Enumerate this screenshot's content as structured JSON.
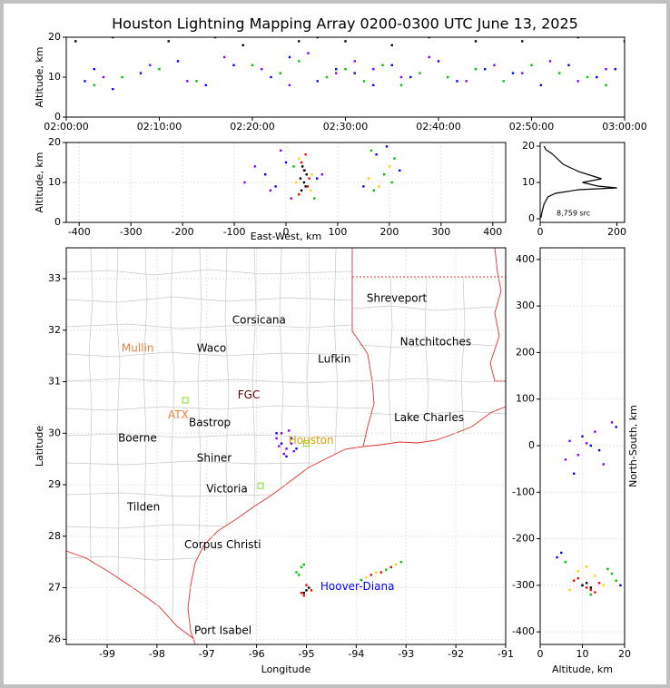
{
  "chart_data": [
    {
      "type": "scatter",
      "title": "Houston Lightning Mapping Array 0200-0300 UTC June 13, 2025",
      "ylabel": "Altitude, km",
      "xlim": [
        0,
        60
      ],
      "xticks": [
        {
          "value": 0,
          "label": "02:00:00"
        },
        {
          "value": 10,
          "label": "02:10:00"
        },
        {
          "value": 20,
          "label": "02:20:00"
        },
        {
          "value": 30,
          "label": "02:30:00"
        },
        {
          "value": 40,
          "label": "02:40:00"
        },
        {
          "value": 50,
          "label": "02:50:00"
        },
        {
          "value": 60,
          "label": "03:00:00"
        }
      ],
      "ylim": [
        0,
        20
      ],
      "yticks": [
        0,
        10,
        20
      ],
      "grid": false,
      "series": [
        {
          "color": "#0000ff",
          "x": [
            2,
            3,
            5,
            8,
            12,
            15,
            18,
            22,
            24,
            27,
            29,
            31,
            33,
            35,
            37,
            40,
            42,
            45,
            48,
            51,
            54,
            57,
            59
          ],
          "y": [
            9,
            12,
            7,
            11,
            14,
            8,
            13,
            10,
            15,
            9,
            12,
            11,
            8,
            13,
            10,
            14,
            9,
            12,
            11,
            8,
            13,
            10,
            12
          ]
        },
        {
          "color": "#00c000",
          "x": [
            3,
            6,
            10,
            14,
            20,
            23,
            25,
            28,
            30,
            32,
            34,
            36,
            38,
            41,
            44,
            47,
            50,
            53,
            56,
            58
          ],
          "y": [
            8,
            10,
            12,
            9,
            13,
            11,
            14,
            10,
            12,
            9,
            13,
            8,
            11,
            10,
            12,
            9,
            13,
            11,
            10,
            8
          ]
        },
        {
          "color": "#8000ff",
          "x": [
            4,
            9,
            13,
            17,
            21,
            24,
            26,
            29,
            31,
            33,
            36,
            39,
            43,
            46,
            49,
            52,
            55,
            58
          ],
          "y": [
            10,
            13,
            9,
            15,
            12,
            8,
            16,
            11,
            14,
            12,
            10,
            15,
            9,
            13,
            11,
            14,
            9,
            12
          ]
        },
        {
          "color": "#000000",
          "x": [
            1,
            5,
            11,
            16,
            19,
            25,
            27,
            30,
            35,
            39,
            44,
            49,
            55,
            60
          ],
          "y": [
            19,
            20,
            19,
            20,
            18,
            19,
            20,
            19,
            18,
            20,
            19,
            19,
            20,
            19
          ]
        }
      ]
    },
    {
      "type": "scatter",
      "xlabel": "East-West, km",
      "ylabel": "Altitude, km",
      "xlim": [
        -425,
        425
      ],
      "xticks": [
        -400,
        -300,
        -200,
        -100,
        0,
        100,
        200,
        300,
        400
      ],
      "ylim": [
        0,
        20
      ],
      "yticks": [
        0,
        10,
        20
      ],
      "grid": true,
      "series": [
        {
          "color": "#8000ff",
          "x": [
            -80,
            -60,
            -30,
            -10,
            10,
            70
          ],
          "y": [
            10,
            14,
            8,
            18,
            6,
            12
          ]
        },
        {
          "color": "#0000ff",
          "x": [
            -40,
            -20,
            0,
            60,
            150,
            220,
            175,
            195
          ],
          "y": [
            12,
            9,
            15,
            11,
            9,
            13,
            17,
            19
          ]
        },
        {
          "color": "#00c000",
          "x": [
            15,
            55,
            170,
            190,
            210,
            165,
            205
          ],
          "y": [
            14,
            6,
            8,
            12,
            16,
            18,
            10
          ]
        },
        {
          "color": "#ffd000",
          "x": [
            20,
            50,
            25,
            48,
            160,
            200,
            180
          ],
          "y": [
            10,
            12,
            16,
            8,
            11,
            14,
            9
          ]
        },
        {
          "color": "#ff0000",
          "x": [
            25,
            45,
            30,
            42,
            35,
            38
          ],
          "y": [
            7,
            11,
            15,
            9,
            13,
            17
          ]
        },
        {
          "color": "#000000",
          "x": [
            30,
            35,
            40,
            32,
            38,
            28,
            36
          ],
          "y": [
            8,
            10,
            12,
            14,
            9,
            11,
            13
          ]
        }
      ]
    },
    {
      "type": "line",
      "annotation": "8,759 src",
      "xlim": [
        0,
        220
      ],
      "xticks": [
        0,
        200
      ],
      "ylim": [
        -1,
        21
      ],
      "yticks": [
        0,
        10,
        20
      ],
      "grid": false,
      "series": [
        {
          "color": "#000000",
          "x": [
            2,
            5,
            10,
            20,
            40,
            100,
            200,
            150,
            110,
            160,
            130,
            100,
            80,
            60,
            50,
            40,
            30,
            15,
            10
          ],
          "y": [
            0.3,
            2,
            4,
            6,
            7,
            8,
            8.5,
            9,
            10,
            11,
            12,
            13,
            14,
            15,
            16,
            17,
            18,
            19,
            20
          ]
        }
      ]
    },
    {
      "type": "scatter",
      "xlabel": "Longitude",
      "ylabel": "Latitude",
      "xlim": [
        -99.82,
        -91
      ],
      "xticks": [
        -99,
        -98,
        -97,
        -96,
        -95,
        -94,
        -93,
        -92,
        -91
      ],
      "ylim": [
        25.9,
        33.6
      ],
      "yticks": [
        26,
        27,
        28,
        29,
        30,
        31,
        32,
        33
      ],
      "grid": true,
      "labels": [
        {
          "text": "Shreveport",
          "x": -93.79,
          "y": 32.61,
          "color": "#000000"
        },
        {
          "text": "Corsicana",
          "x": -96.49,
          "y": 32.19,
          "color": "#000000"
        },
        {
          "text": "Natchitoches",
          "x": -93.12,
          "y": 31.77,
          "color": "#000000"
        },
        {
          "text": "Mullin",
          "x": -98.71,
          "y": 31.64,
          "color": "#f08040"
        },
        {
          "text": "Waco",
          "x": -97.2,
          "y": 31.64,
          "color": "#000000"
        },
        {
          "text": "Lufkin",
          "x": -94.77,
          "y": 31.43,
          "color": "#000000"
        },
        {
          "text": "FGC",
          "x": -96.38,
          "y": 30.74,
          "color": "#600000"
        },
        {
          "text": "ATX",
          "x": -97.78,
          "y": 30.35,
          "color": "#f08040"
        },
        {
          "text": "Bastrop",
          "x": -97.36,
          "y": 30.2,
          "color": "#000000"
        },
        {
          "text": "Lake Charles",
          "x": -93.24,
          "y": 30.3,
          "color": "#000000"
        },
        {
          "text": "Boerne",
          "x": -98.78,
          "y": 29.9,
          "color": "#000000"
        },
        {
          "text": "Houston",
          "x": -95.36,
          "y": 29.86,
          "color": "#e0a000"
        },
        {
          "text": "Shiner",
          "x": -97.2,
          "y": 29.51,
          "color": "#000000"
        },
        {
          "text": "Victoria",
          "x": -97.01,
          "y": 28.91,
          "color": "#000000"
        },
        {
          "text": "Tilden",
          "x": -98.6,
          "y": 28.56,
          "color": "#000000"
        },
        {
          "text": "Corpus Christi",
          "x": -97.45,
          "y": 27.83,
          "color": "#000000"
        },
        {
          "text": "Hoover-Diana",
          "x": -94.72,
          "y": 27.02,
          "color": "#0000ff"
        },
        {
          "text": "Port Isabel",
          "x": -97.25,
          "y": 26.16,
          "color": "#000000"
        }
      ],
      "stations": {
        "color": "#80e020",
        "x": [
          -97.43,
          -95.92,
          -95.0
        ],
        "y": [
          30.64,
          28.98,
          29.8
        ]
      },
      "series": [
        {
          "color": "#8000ff",
          "x": [
            -95.6,
            -95.5,
            -95.4,
            -95.3,
            -95.45,
            -95.35,
            -95.55,
            -95.25
          ],
          "y": [
            29.9,
            30.0,
            29.7,
            29.8,
            29.6,
            30.05,
            29.75,
            29.65
          ]
        },
        {
          "color": "#0000ff",
          "x": [
            -95.5,
            -95.3,
            -95.4,
            -95.2,
            -95.6
          ],
          "y": [
            29.8,
            29.9,
            29.55,
            29.7,
            30.0
          ]
        },
        {
          "color": "#00c000",
          "x": [
            -95.2,
            -95.1,
            -95.15,
            -95.05,
            -93.9,
            -93.1,
            -93.4
          ],
          "y": [
            27.3,
            27.4,
            27.25,
            27.45,
            27.15,
            27.5,
            27.35
          ]
        },
        {
          "color": "#ffd000",
          "x": [
            -93.8,
            -93.6,
            -93.3,
            -93.2
          ],
          "y": [
            27.2,
            27.3,
            27.4,
            27.45
          ]
        },
        {
          "color": "#ff0000",
          "x": [
            -95.1,
            -95.0,
            -94.9,
            -95.05,
            -93.7,
            -93.5,
            -93.3
          ],
          "y": [
            26.9,
            27.05,
            26.95,
            26.85,
            27.25,
            27.3,
            27.4
          ]
        },
        {
          "color": "#000000",
          "x": [
            -95.0,
            -94.95,
            -95.05
          ],
          "y": [
            26.95,
            27.0,
            26.9
          ]
        }
      ]
    },
    {
      "type": "scatter",
      "xlabel": "Altitude, km",
      "ylabel": "North-South, km",
      "xlim": [
        0,
        20
      ],
      "xticks": [
        0,
        10,
        20
      ],
      "ylim": [
        -427,
        425
      ],
      "yticks": [
        -400,
        -300,
        -200,
        -100,
        0,
        100,
        200,
        300,
        400
      ],
      "grid": true,
      "series": [
        {
          "color": "#8000ff",
          "x": [
            7,
            9,
            13,
            15,
            11,
            17,
            6
          ],
          "y": [
            10,
            -20,
            30,
            -40,
            5,
            50,
            -30
          ]
        },
        {
          "color": "#0000ff",
          "x": [
            5,
            19,
            4,
            10,
            14,
            18,
            8,
            12
          ],
          "y": [
            -230,
            -300,
            -240,
            20,
            -10,
            40,
            -60,
            0
          ]
        },
        {
          "color": "#00c000",
          "x": [
            6,
            16,
            18,
            12,
            17
          ],
          "y": [
            -250,
            -265,
            -290,
            -320,
            -275
          ]
        },
        {
          "color": "#ffd000",
          "x": [
            9,
            13,
            15,
            11,
            7
          ],
          "y": [
            -270,
            -280,
            -300,
            -260,
            -310
          ]
        },
        {
          "color": "#ff0000",
          "x": [
            8,
            10,
            12,
            14,
            11,
            9,
            13
          ],
          "y": [
            -290,
            -300,
            -310,
            -295,
            -305,
            -285,
            -315
          ]
        },
        {
          "color": "#000000",
          "x": [
            10,
            11,
            12
          ],
          "y": [
            -300,
            -295,
            -305
          ]
        }
      ]
    }
  ]
}
